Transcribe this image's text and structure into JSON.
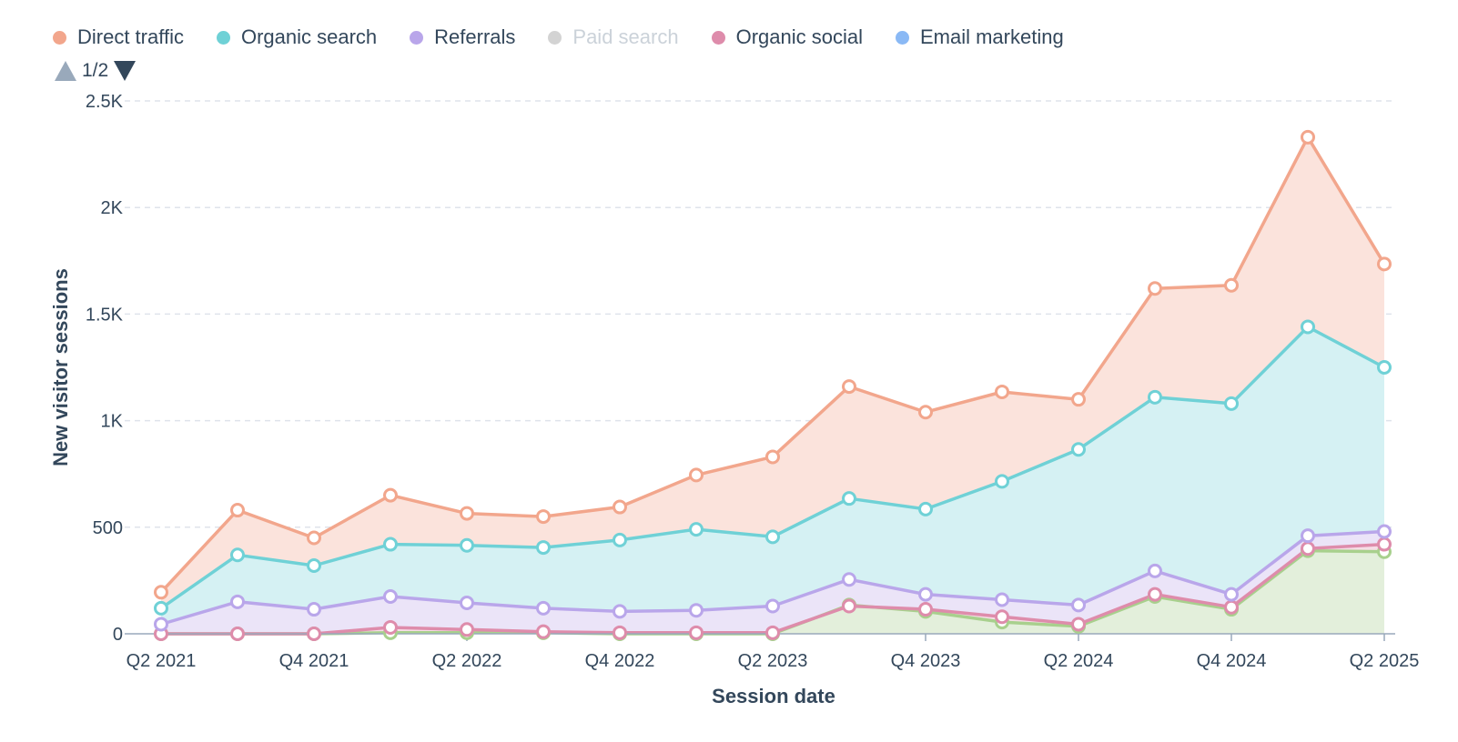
{
  "chart_data": {
    "type": "area",
    "stacked": true,
    "title": "",
    "xlabel": "Session date",
    "ylabel": "New visitor sessions",
    "ylim": [
      0,
      2500
    ],
    "yticks": [
      0,
      500,
      1000,
      1500,
      2000,
      2500
    ],
    "ytick_labels": [
      "0",
      "500",
      "1K",
      "1.5K",
      "2K",
      "2.5K"
    ],
    "grid": true,
    "legend": "top-left",
    "legend_page": "1/2",
    "categories": [
      "Q2 2021",
      "Q3 2021",
      "Q4 2021",
      "Q1 2022",
      "Q2 2022",
      "Q3 2022",
      "Q4 2022",
      "Q1 2023",
      "Q2 2023",
      "Q3 2023",
      "Q4 2023",
      "Q1 2024",
      "Q2 2024",
      "Q3 2024",
      "Q4 2024",
      "Q1 2025",
      "Q2 2025"
    ],
    "xtick_labels": [
      "Q2 2021",
      "",
      "Q4 2021",
      "",
      "Q2 2022",
      "",
      "Q4 2022",
      "",
      "Q2 2023",
      "",
      "Q4 2023",
      "",
      "Q2 2024",
      "",
      "Q4 2024",
      "",
      "Q2 2025"
    ],
    "legend_items": [
      {
        "name": "Direct traffic",
        "color": "#f2a68c",
        "enabled": true
      },
      {
        "name": "Organic search",
        "color": "#6fd1d6",
        "enabled": true
      },
      {
        "name": "Referrals",
        "color": "#b9a6ea",
        "enabled": true
      },
      {
        "name": "Paid search",
        "color": "#cccccc",
        "enabled": false
      },
      {
        "name": "Organic social",
        "color": "#de8cab",
        "enabled": true
      },
      {
        "name": "Email marketing",
        "color": "#8ab9f5",
        "enabled": true
      }
    ],
    "series": [
      {
        "name": "Direct traffic",
        "color": "#f2a68c",
        "fill": "#fbe3dc",
        "cumulative": [
          195,
          580,
          450,
          650,
          565,
          550,
          595,
          745,
          830,
          1160,
          1040,
          1135,
          1100,
          1620,
          1635,
          2330,
          1735
        ]
      },
      {
        "name": "Organic search",
        "color": "#6fd1d6",
        "fill": "#d5f1f3",
        "cumulative": [
          120,
          370,
          320,
          420,
          415,
          405,
          440,
          490,
          455,
          635,
          585,
          715,
          865,
          1110,
          1080,
          1440,
          1250
        ]
      },
      {
        "name": "Referrals",
        "color": "#b9a6ea",
        "fill": "#ebe4f8",
        "cumulative": [
          45,
          150,
          115,
          175,
          145,
          120,
          105,
          110,
          130,
          255,
          185,
          160,
          135,
          295,
          185,
          460,
          480
        ]
      },
      {
        "name": "Organic social",
        "color": "#de8cab",
        "fill": "#f6dde6",
        "cumulative": [
          0,
          0,
          0,
          30,
          20,
          10,
          5,
          5,
          5,
          130,
          115,
          80,
          45,
          185,
          125,
          400,
          420
        ]
      },
      {
        "name": "",
        "color": "#a8d08d",
        "fill": "#e3efdb",
        "cumulative": [
          0,
          0,
          0,
          5,
          5,
          5,
          0,
          0,
          0,
          135,
          105,
          55,
          35,
          175,
          115,
          390,
          385
        ]
      }
    ]
  }
}
